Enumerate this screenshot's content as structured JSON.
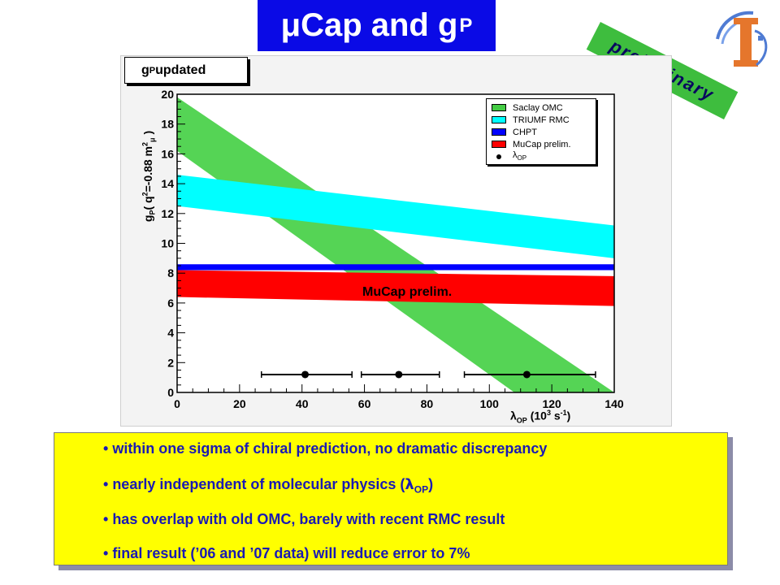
{
  "title": {
    "mu": "μ",
    "main": "Cap and g",
    "sub": "P"
  },
  "preliminary_banner": "preliminary",
  "panel_label": {
    "prefix": "g",
    "sub": "P",
    "suffix": " updated"
  },
  "legend": [
    {
      "label": "Saclay OMC",
      "color": "#44cc44",
      "kind": "box"
    },
    {
      "label": "TRIUMF RMC",
      "color": "#00ffff",
      "kind": "box"
    },
    {
      "label": "CHPT",
      "color": "#0000ff",
      "kind": "box"
    },
    {
      "label": "MuCap prelim.",
      "color": "#ff0000",
      "kind": "box"
    },
    {
      "label": "λ",
      "sub": "OP",
      "kind": "point"
    }
  ],
  "axes": {
    "ylabel_parts": [
      "g",
      "P",
      "( q",
      "2",
      "=-0.88 m",
      "2",
      "μ",
      " )"
    ],
    "xlabel_parts": [
      "λ",
      "OP",
      " (10",
      "3",
      " s",
      "-1",
      ")"
    ]
  },
  "chart_data": {
    "type": "area",
    "xlim": [
      0,
      140
    ],
    "ylim": [
      0,
      20
    ],
    "xticks": [
      0,
      20,
      40,
      60,
      80,
      100,
      120,
      140
    ],
    "yticks": [
      0,
      2,
      4,
      6,
      8,
      10,
      12,
      14,
      16,
      18,
      20
    ],
    "bands": [
      {
        "name": "Saclay OMC",
        "color": "#55d455",
        "low": [
          [
            0,
            16.2
          ],
          [
            108,
            0
          ]
        ],
        "high": [
          [
            0,
            19.8
          ],
          [
            140,
            0
          ]
        ]
      },
      {
        "name": "TRIUMF RMC",
        "color": "#00ffff",
        "low": [
          [
            0,
            12.5
          ],
          [
            140,
            9.0
          ]
        ],
        "high": [
          [
            0,
            14.6
          ],
          [
            140,
            11.2
          ]
        ]
      },
      {
        "name": "CHPT",
        "color": "#0000ff",
        "low": [
          [
            0,
            8.2
          ],
          [
            140,
            8.2
          ]
        ],
        "high": [
          [
            0,
            8.6
          ],
          [
            140,
            8.6
          ]
        ]
      },
      {
        "name": "MuCap prelim.",
        "color": "#ff0000",
        "low": [
          [
            0,
            6.4
          ],
          [
            140,
            5.8
          ]
        ],
        "high": [
          [
            0,
            8.2
          ],
          [
            140,
            7.8
          ]
        ]
      }
    ],
    "band_annotation": "MuCap prelim.",
    "points": [
      {
        "x": 41,
        "y": 1.2,
        "xerr_low": 27,
        "xerr_high": 56
      },
      {
        "x": 71,
        "y": 1.2,
        "xerr_low": 59,
        "xerr_high": 84
      },
      {
        "x": 112,
        "y": 1.2,
        "xerr_low": 92,
        "xerr_high": 134
      }
    ]
  },
  "bullets": [
    {
      "text": "within one sigma of chiral prediction, no dramatic discrepancy"
    },
    {
      "text": "nearly independent of molecular physics (",
      "sym": "λ",
      "sub": "OP",
      "after": ")"
    },
    {
      "text": "has overlap with old OMC, barely with recent RMC result"
    },
    {
      "text": "final result (’06 and ’07 data) will reduce error to 7%"
    }
  ]
}
